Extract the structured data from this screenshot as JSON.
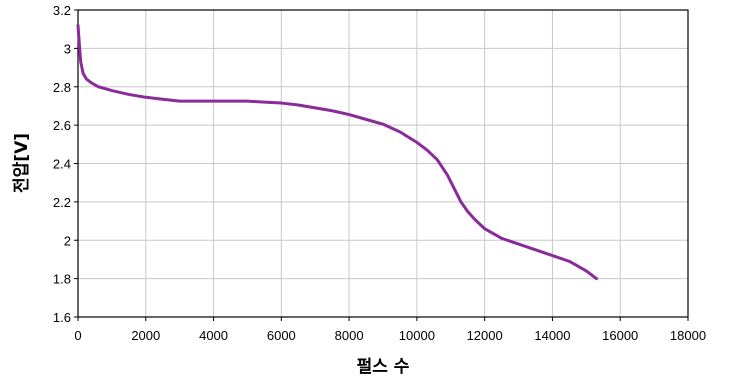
{
  "chart_data": {
    "type": "line",
    "title": "",
    "xlabel": "펄스 수",
    "ylabel": "전압[V]",
    "xlim": [
      0,
      18000
    ],
    "ylim": [
      1.6,
      3.2
    ],
    "x_ticks": [
      0,
      2000,
      4000,
      6000,
      8000,
      10000,
      12000,
      14000,
      16000,
      18000
    ],
    "y_ticks": [
      1.6,
      1.8,
      2,
      2.2,
      2.4,
      2.6,
      2.8,
      3,
      3.2
    ],
    "x_tick_labels": [
      "0",
      "2000",
      "4000",
      "6000",
      "8000",
      "10000",
      "12000",
      "14000",
      "16000",
      "18000"
    ],
    "y_tick_labels": [
      "1.6",
      "1.8",
      "2",
      "2.2",
      "2.4",
      "2.6",
      "2.8",
      "3",
      "3.2"
    ],
    "grid": true,
    "legend": "none",
    "series": [
      {
        "color": "#8B2A9B",
        "x": [
          0,
          40,
          80,
          150,
          250,
          400,
          600,
          1000,
          1500,
          2000,
          2500,
          3000,
          3500,
          4000,
          4500,
          5000,
          5500,
          6000,
          6500,
          7000,
          7500,
          8000,
          8500,
          9000,
          9500,
          10000,
          10300,
          10600,
          10900,
          11100,
          11300,
          11500,
          11700,
          12000,
          12500,
          13000,
          13500,
          14000,
          14500,
          15000,
          15300
        ],
        "y": [
          3.12,
          3.02,
          2.93,
          2.87,
          2.84,
          2.82,
          2.8,
          2.78,
          2.76,
          2.745,
          2.735,
          2.725,
          2.725,
          2.725,
          2.725,
          2.725,
          2.72,
          2.715,
          2.705,
          2.69,
          2.675,
          2.655,
          2.63,
          2.605,
          2.565,
          2.51,
          2.47,
          2.42,
          2.34,
          2.27,
          2.2,
          2.15,
          2.11,
          2.06,
          2.01,
          1.98,
          1.95,
          1.92,
          1.89,
          1.84,
          1.8
        ]
      }
    ]
  }
}
